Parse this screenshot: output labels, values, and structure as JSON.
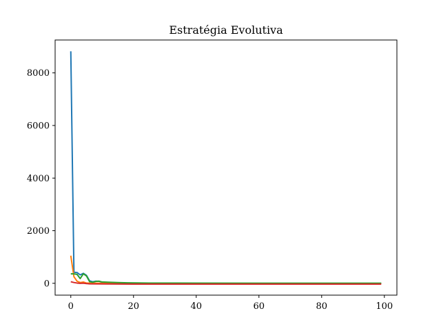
{
  "chart_data": {
    "type": "line",
    "title": "Estratégia Evolutiva",
    "xlabel": "",
    "ylabel": "",
    "xlim": [
      -5,
      104
    ],
    "ylim": [
      -450,
      9250
    ],
    "grid": false,
    "legend": "none",
    "xticks": [
      0,
      20,
      40,
      60,
      80,
      100
    ],
    "yticks": [
      0,
      2000,
      4000,
      6000,
      8000
    ],
    "series": [
      {
        "color": "#1f77b4",
        "points": [
          [
            0,
            8820
          ],
          [
            1,
            420
          ],
          [
            2,
            410
          ],
          [
            3,
            320
          ],
          [
            4,
            380
          ],
          [
            5,
            300
          ],
          [
            6,
            90
          ],
          [
            7,
            60
          ],
          [
            8,
            80
          ],
          [
            9,
            75
          ],
          [
            10,
            40
          ],
          [
            12,
            30
          ],
          [
            15,
            15
          ],
          [
            20,
            5
          ],
          [
            30,
            2
          ],
          [
            50,
            0
          ],
          [
            70,
            0
          ],
          [
            99,
            0
          ]
        ]
      },
      {
        "color": "#ff7f0e",
        "points": [
          [
            0,
            1050
          ],
          [
            1,
            250
          ],
          [
            2,
            80
          ],
          [
            3,
            30
          ],
          [
            4,
            50
          ],
          [
            5,
            10
          ],
          [
            6,
            5
          ],
          [
            8,
            3
          ],
          [
            15,
            0
          ],
          [
            30,
            0
          ],
          [
            50,
            0
          ],
          [
            70,
            0
          ],
          [
            99,
            0
          ]
        ]
      },
      {
        "color": "#2ca02c",
        "points": [
          [
            0,
            360
          ],
          [
            1,
            360
          ],
          [
            2,
            340
          ],
          [
            3,
            180
          ],
          [
            4,
            360
          ],
          [
            5,
            280
          ],
          [
            6,
            60
          ],
          [
            7,
            40
          ],
          [
            8,
            70
          ],
          [
            9,
            80
          ],
          [
            10,
            50
          ],
          [
            12,
            40
          ],
          [
            15,
            30
          ],
          [
            18,
            20
          ],
          [
            25,
            10
          ],
          [
            40,
            5
          ],
          [
            60,
            3
          ],
          [
            80,
            2
          ],
          [
            99,
            2
          ]
        ]
      },
      {
        "color": "#d62728",
        "points": [
          [
            0,
            60
          ],
          [
            1,
            30
          ],
          [
            2,
            10
          ],
          [
            3,
            0
          ],
          [
            4,
            5
          ],
          [
            5,
            -10
          ],
          [
            6,
            -20
          ],
          [
            10,
            -25
          ],
          [
            20,
            -30
          ],
          [
            40,
            -30
          ],
          [
            60,
            -30
          ],
          [
            80,
            -30
          ],
          [
            99,
            -30
          ]
        ]
      }
    ]
  }
}
